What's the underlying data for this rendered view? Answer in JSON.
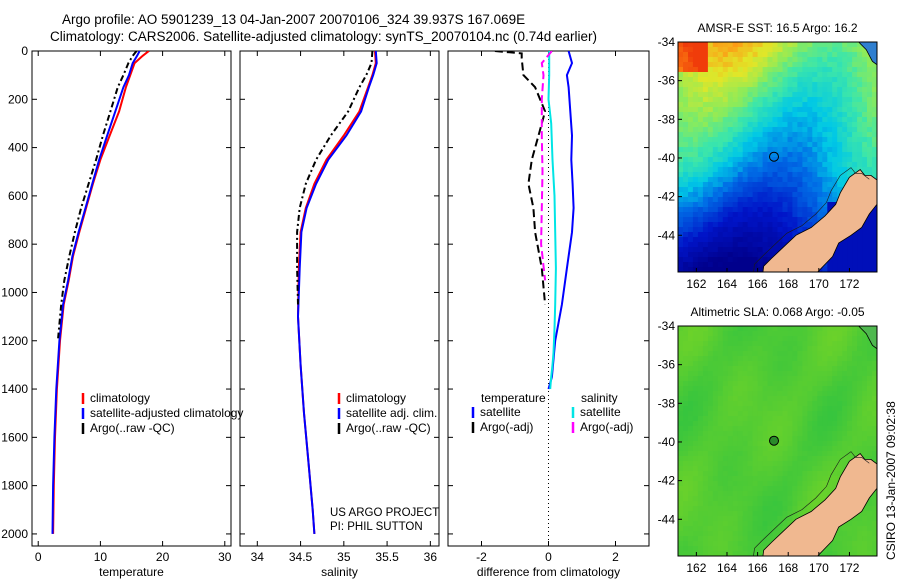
{
  "header": {
    "line1": "Argo profile: AO 5901239_13 04-Jan-2007 20070106_324 39.937S 167.069E",
    "line2": "Climatology: CARS2006. Satellite-adjusted climatology: synTS_20070104.nc (0.74d earlier)"
  },
  "credits": {
    "line1": "US ARGO PROJECT",
    "line2": "PI: PHIL SUTTON"
  },
  "watermark": "CSIRO 13-Jan-2007 09:02:38",
  "colors": {
    "climatology": "#ff0000",
    "satellite": "#0000ff",
    "argo": "#000000",
    "sal_satellite": "#00e5e5",
    "sal_argo": "#ff00ff",
    "land": "#f0b890"
  },
  "chart_data": [
    {
      "id": "temperature",
      "type": "line",
      "xlabel": "temperature",
      "ylabel": "",
      "xlim": [
        -1,
        31
      ],
      "ylim": [
        2050,
        0
      ],
      "xticks": [
        "0",
        "10",
        "20",
        "30"
      ],
      "xtick_values": [
        0,
        10,
        20,
        30
      ],
      "yticks": [
        "0",
        "200",
        "400",
        "600",
        "800",
        "1000",
        "1200",
        "1400",
        "1600",
        "1800",
        "2000"
      ],
      "ytick_values": [
        0,
        200,
        400,
        600,
        800,
        1000,
        1200,
        1400,
        1600,
        1800,
        2000
      ],
      "legend": [
        "climatology",
        "satellite-adjusted climatology",
        "Argo(..raw -QC)"
      ],
      "series": [
        {
          "name": "climatology",
          "color": "#ff0000",
          "dash": "",
          "x": [
            17.8,
            16.8,
            15.5,
            14.8,
            14.1,
            13.0,
            11.5,
            10.0,
            8.8,
            7.7,
            6.6,
            5.6,
            4.9,
            4.1,
            3.5,
            3.0,
            2.7,
            2.5,
            2.4
          ],
          "y": [
            0,
            20,
            50,
            100,
            150,
            250,
            350,
            450,
            550,
            650,
            750,
            850,
            950,
            1050,
            1200,
            1400,
            1600,
            1800,
            2000
          ]
        },
        {
          "name": "satellite",
          "color": "#0000ff",
          "dash": "",
          "x": [
            16.3,
            15.9,
            15.2,
            14.6,
            13.7,
            12.4,
            11.1,
            9.8,
            8.7,
            7.6,
            6.5,
            5.5,
            4.8,
            4.0,
            3.4,
            2.9,
            2.6,
            2.4,
            2.3
          ],
          "y": [
            0,
            20,
            50,
            100,
            150,
            250,
            350,
            450,
            550,
            650,
            750,
            850,
            950,
            1050,
            1200,
            1400,
            1600,
            1800,
            2000
          ]
        },
        {
          "name": "Argo",
          "color": "#000000",
          "dash": "6 3 2 3",
          "x": [
            15.8,
            15.2,
            14.5,
            13.7,
            12.8,
            11.6,
            10.4,
            9.3,
            8.1,
            6.9,
            5.9,
            5.0,
            4.2,
            3.7,
            3.2
          ],
          "y": [
            0,
            20,
            50,
            100,
            150,
            250,
            350,
            450,
            550,
            650,
            750,
            850,
            950,
            1050,
            1190
          ]
        }
      ]
    },
    {
      "id": "salinity",
      "type": "line",
      "xlabel": "salinity",
      "ylabel": "",
      "xlim": [
        33.8,
        36.1
      ],
      "ylim": [
        2050,
        0
      ],
      "xticks": [
        "34",
        "34.5",
        "35",
        "35.5",
        "36"
      ],
      "xtick_values": [
        34,
        34.5,
        35,
        35.5,
        36
      ],
      "legend": [
        "climatology",
        "satellite adj. clim.",
        "Argo(..raw -QC)"
      ],
      "series": [
        {
          "name": "climatology",
          "color": "#ff0000",
          "dash": "",
          "x": [
            35.36,
            35.37,
            35.33,
            35.28,
            35.18,
            35.0,
            34.8,
            34.66,
            34.56,
            34.5,
            34.48,
            34.47,
            34.5,
            34.54,
            34.59,
            34.64,
            34.66
          ],
          "y": [
            0,
            50,
            100,
            150,
            250,
            350,
            450,
            550,
            650,
            750,
            900,
            1100,
            1300,
            1500,
            1700,
            1900,
            2000
          ]
        },
        {
          "name": "satellite",
          "color": "#0000ff",
          "dash": "",
          "x": [
            35.37,
            35.38,
            35.34,
            35.29,
            35.2,
            35.03,
            34.82,
            34.68,
            34.57,
            34.51,
            34.49,
            34.47,
            34.5,
            34.54,
            34.59,
            34.64,
            34.66
          ],
          "y": [
            0,
            50,
            100,
            150,
            250,
            350,
            450,
            550,
            650,
            750,
            900,
            1100,
            1300,
            1500,
            1700,
            1900,
            2000
          ]
        },
        {
          "name": "Argo",
          "color": "#000000",
          "dash": "6 3 2 3",
          "x": [
            35.33,
            35.32,
            35.26,
            35.18,
            35.05,
            34.85,
            34.68,
            34.56,
            34.49,
            34.46,
            34.46,
            34.47
          ],
          "y": [
            0,
            50,
            100,
            150,
            250,
            350,
            450,
            550,
            650,
            750,
            900,
            1050
          ]
        }
      ]
    },
    {
      "id": "difference",
      "type": "line",
      "xlabel": "difference from climatology",
      "ylabel": "",
      "xlim": [
        -3,
        3
      ],
      "ylim": [
        2050,
        0
      ],
      "xticks": [
        "-2",
        "0",
        "2"
      ],
      "xtick_values": [
        -2,
        0,
        2
      ],
      "legend_left": {
        "title": "temperature",
        "items": [
          "satellite",
          "Argo(-adj)"
        ]
      },
      "legend_right": {
        "title": "salinity",
        "items": [
          "satellite",
          "Argo(-adj)"
        ]
      },
      "series": [
        {
          "name": "temperature satellite",
          "color": "#0000ff",
          "dash": "",
          "x": [
            0.6,
            0.7,
            0.55,
            0.6,
            0.65,
            0.7,
            0.68,
            0.72,
            0.75,
            0.7,
            0.55,
            0.4,
            0.2,
            0.1,
            0.0
          ],
          "y": [
            0,
            50,
            100,
            150,
            250,
            350,
            450,
            550,
            650,
            750,
            900,
            1050,
            1200,
            1350,
            1400
          ]
        },
        {
          "name": "temperature Argo(-adj)",
          "color": "#000000",
          "dash": "8 4",
          "x": [
            -1.6,
            -0.8,
            -0.8,
            -0.75,
            -0.4,
            -0.1,
            -0.3,
            -0.5,
            -0.6,
            -0.45,
            -0.4,
            -0.2,
            -0.1
          ],
          "y": [
            0,
            10,
            30,
            100,
            150,
            250,
            350,
            450,
            550,
            650,
            750,
            900,
            1050
          ]
        },
        {
          "name": "salinity satellite",
          "color": "#00e5e5",
          "dash": "",
          "x": [
            0.02,
            0.02,
            0.0,
            0.08,
            0.12,
            0.18,
            0.2,
            0.22,
            0.2,
            0.18,
            0.15,
            0.12,
            0.08,
            0.05
          ],
          "y": [
            0,
            100,
            200,
            300,
            450,
            600,
            750,
            900,
            1050,
            1150,
            1250,
            1300,
            1350,
            1400
          ]
        },
        {
          "name": "salinity Argo(-adj)",
          "color": "#ff00ff",
          "dash": "8 4",
          "x": [
            0.1,
            -0.2,
            -0.15,
            -0.2,
            -0.2,
            -0.18,
            -0.2,
            -0.22,
            -0.1
          ],
          "y": [
            0,
            50,
            100,
            200,
            350,
            500,
            650,
            800,
            950
          ]
        }
      ]
    },
    {
      "id": "sst_map",
      "type": "heatmap",
      "title": "AMSR-E SST: 16.5 Argo: 16.2",
      "xlim": [
        160.8,
        173.8
      ],
      "ylim": [
        -45.9,
        -34.0
      ],
      "xticks": [
        "162",
        "164",
        "166",
        "168",
        "170",
        "172"
      ],
      "xtick_values": [
        162,
        164,
        166,
        168,
        170,
        172
      ],
      "yticks": [
        "-34",
        "-36",
        "-38",
        "-40",
        "-42",
        "-44"
      ],
      "ytick_values": [
        -34,
        -36,
        -38,
        -40,
        -42,
        -44
      ],
      "marker": {
        "lon": 167.069,
        "lat": -39.937
      }
    },
    {
      "id": "sla_map",
      "type": "heatmap",
      "title": "Altimetric SLA: 0.068 Argo: -0.05",
      "xlim": [
        160.8,
        173.8
      ],
      "ylim": [
        -45.9,
        -34.0
      ],
      "xticks": [
        "162",
        "164",
        "166",
        "168",
        "170",
        "172"
      ],
      "xtick_values": [
        162,
        164,
        166,
        168,
        170,
        172
      ],
      "yticks": [
        "-34",
        "-36",
        "-38",
        "-40",
        "-42",
        "-44"
      ],
      "ytick_values": [
        -34,
        -36,
        -38,
        -40,
        -42,
        -44
      ],
      "marker": {
        "lon": 167.069,
        "lat": -39.937
      }
    }
  ]
}
